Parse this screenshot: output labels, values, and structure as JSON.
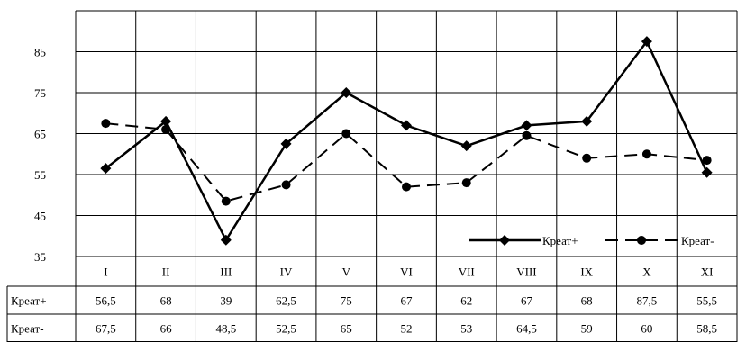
{
  "chart_data": {
    "type": "line",
    "categories": [
      "I",
      "II",
      "III",
      "IV",
      "V",
      "VI",
      "VII",
      "VIII",
      "IX",
      "X",
      "XI"
    ],
    "series": [
      {
        "name": "Креат+",
        "values": [
          56.5,
          68,
          39,
          62.5,
          75,
          67,
          62,
          67,
          68,
          87.5,
          55.5
        ],
        "style": "solid",
        "marker": "diamond",
        "color": "#000000"
      },
      {
        "name": "Креат-",
        "values": [
          67.5,
          66,
          48.5,
          52.5,
          65,
          52,
          53,
          64.5,
          59,
          60,
          58.5
        ],
        "style": "dashed",
        "marker": "circle",
        "color": "#000000"
      }
    ],
    "table_rows": [
      {
        "label": "Креат+",
        "cells": [
          "56,5",
          "68",
          "39",
          "62,5",
          "75",
          "67",
          "62",
          "67",
          "68",
          "87,5",
          "55,5"
        ]
      },
      {
        "label": "Креат-",
        "cells": [
          "67,5",
          "66",
          "48,5",
          "52,5",
          "65",
          "52",
          "53",
          "64,5",
          "59",
          "60",
          "58,5"
        ]
      }
    ],
    "y_ticks": [
      35,
      45,
      55,
      65,
      75,
      85
    ],
    "ylim": [
      35,
      95
    ],
    "grid": true,
    "legend": "bottom-right",
    "title": "",
    "xlabel": "",
    "ylabel": ""
  }
}
